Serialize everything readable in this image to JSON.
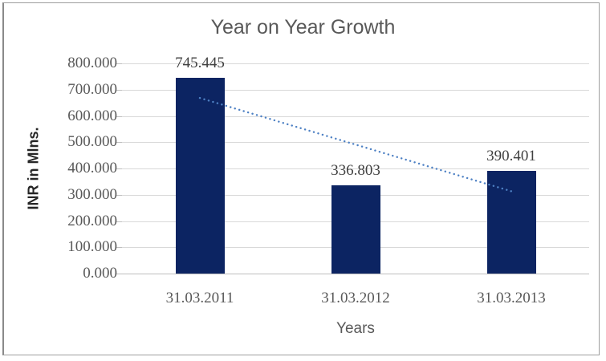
{
  "chart_data": {
    "type": "bar",
    "title": "Year on Year Growth",
    "xlabel": "Years",
    "ylabel": "INR in Mlns.",
    "categories": [
      "31.03.2011",
      "31.03.2012",
      "31.03.2013"
    ],
    "values": [
      745.445,
      336.803,
      390.401
    ],
    "value_labels": [
      "745.445",
      "336.803",
      "390.401"
    ],
    "ylim": [
      0,
      800
    ],
    "y_tick_step": 100,
    "y_tick_labels": [
      "800.000",
      "700.000",
      "600.000",
      "500.000",
      "400.000",
      "300.000",
      "200.000",
      "100.000",
      "0.000"
    ],
    "grid": true,
    "legend": "none",
    "bar_color": "#0c2462",
    "trendline": {
      "type": "linear",
      "style": "dotted",
      "color": "#4e81c4",
      "endpoint_values": [
        668.405,
        313.361
      ]
    }
  }
}
